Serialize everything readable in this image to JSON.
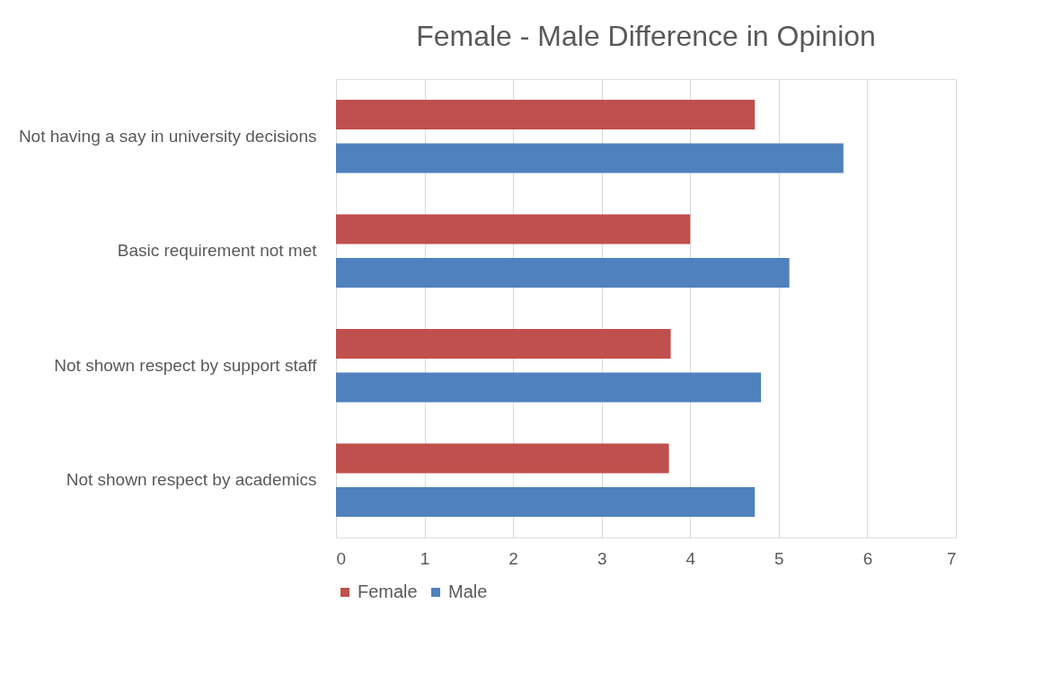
{
  "chart_data": {
    "type": "bar",
    "orientation": "horizontal",
    "title": "Female - Male Difference in Opinion",
    "categories": [
      "Not having a say in university decisions",
      "Basic requirement not met",
      "Not shown respect by support staff",
      "Not shown respect by academics"
    ],
    "series": [
      {
        "name": "Female",
        "color": "#c0504d",
        "values": [
          4.73,
          4.0,
          3.78,
          3.76
        ]
      },
      {
        "name": "Male",
        "color": "#4f81bd",
        "values": [
          5.73,
          5.12,
          4.8,
          4.73
        ]
      }
    ],
    "xlim": [
      0,
      7
    ],
    "xticks": [
      0,
      1,
      2,
      3,
      4,
      5,
      6,
      7
    ],
    "grid": "x",
    "legend": "bottom"
  }
}
